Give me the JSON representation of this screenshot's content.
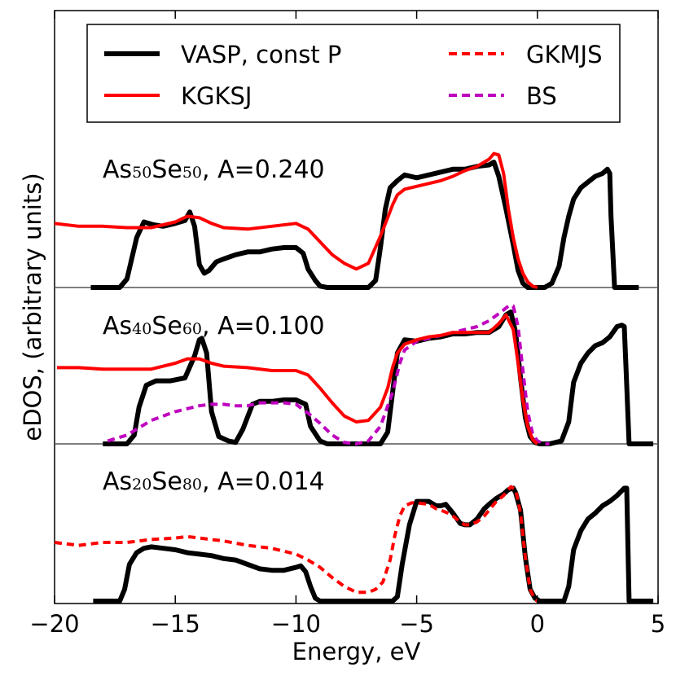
{
  "chart_data": {
    "type": "line",
    "xlabel": "Energy, eV",
    "ylabel": "eDOS, (arbitrary units)",
    "xlim": [
      -20,
      5
    ],
    "x_ticks": [
      -20,
      -15,
      -10,
      -5,
      0,
      5
    ],
    "x_tick_labels": [
      "−20",
      "−15",
      "−10",
      "−5",
      "0",
      "5"
    ],
    "y_tick_labels": "none",
    "legend": {
      "placement": "top",
      "entries": [
        {
          "label": "VASP, const P",
          "color": "#000000",
          "style": "solid"
        },
        {
          "label": "KGKSJ",
          "color": "#ff0000",
          "style": "solid"
        },
        {
          "label": "GKMJS",
          "color": "#ff0000",
          "style": "dashed"
        },
        {
          "label": "BS",
          "color": "#bf00bf",
          "style": "dashed"
        }
      ]
    },
    "panels": [
      {
        "id": "As50Se50",
        "label": {
          "el1": "As",
          "n1": "50",
          "el2": "Se",
          "n2": "50",
          "suffix": ", A=0.240"
        },
        "ylim": [
          0,
          1
        ],
        "series": [
          {
            "name": "VASP, const P",
            "x": [
              -18.5,
              -17.3,
              -17.0,
              -16.6,
              -16.3,
              -15.9,
              -15.5,
              -15.0,
              -14.6,
              -14.4,
              -14.2,
              -14.0,
              -13.8,
              -13.6,
              -13.3,
              -13.0,
              -12.5,
              -12.0,
              -11.5,
              -11.0,
              -10.5,
              -10.0,
              -9.7,
              -9.5,
              -9.2,
              -9.0,
              -8.7,
              -8.3,
              -7.5,
              -7.0,
              -6.7,
              -6.5,
              -6.3,
              -6.1,
              -5.8,
              -5.5,
              -5.0,
              -4.5,
              -4.0,
              -3.5,
              -3.0,
              -2.5,
              -2.0,
              -1.8,
              -1.6,
              -1.3,
              -1.0,
              -0.8,
              -0.6,
              -0.4,
              -0.2,
              0.0,
              0.3,
              0.6,
              0.9,
              1.1,
              1.3,
              1.5,
              1.8,
              2.1,
              2.4,
              2.7,
              2.9,
              3.0,
              3.05,
              3.2,
              4.2
            ],
            "y": [
              0,
              0,
              0.06,
              0.35,
              0.46,
              0.44,
              0.43,
              0.45,
              0.47,
              0.53,
              0.43,
              0.16,
              0.1,
              0.12,
              0.18,
              0.2,
              0.23,
              0.25,
              0.25,
              0.27,
              0.28,
              0.28,
              0.24,
              0.13,
              0.05,
              0.01,
              0,
              0,
              0,
              0,
              0.05,
              0.28,
              0.55,
              0.7,
              0.75,
              0.79,
              0.77,
              0.79,
              0.81,
              0.83,
              0.83,
              0.85,
              0.86,
              0.88,
              0.78,
              0.55,
              0.3,
              0.12,
              0.03,
              0,
              0,
              0,
              0,
              0.03,
              0.15,
              0.35,
              0.5,
              0.62,
              0.7,
              0.74,
              0.78,
              0.8,
              0.83,
              0.8,
              0.5,
              0,
              0
            ]
          },
          {
            "name": "KGKSJ",
            "x": [
              -20.0,
              -19.0,
              -18.0,
              -17.0,
              -16.0,
              -15.0,
              -14.5,
              -14.0,
              -13.5,
              -13.0,
              -12.0,
              -11.0,
              -10.0,
              -9.5,
              -9.0,
              -8.5,
              -8.0,
              -7.5,
              -7.0,
              -6.5,
              -6.2,
              -6.0,
              -5.8,
              -5.5,
              -5.0,
              -4.5,
              -4.0,
              -3.5,
              -3.0,
              -2.5,
              -2.0,
              -1.8,
              -1.6,
              -1.4,
              -1.2,
              -1.0,
              -0.8,
              -0.6,
              -0.4,
              -0.2,
              0.0
            ],
            "y": [
              0.45,
              0.43,
              0.43,
              0.42,
              0.42,
              0.46,
              0.5,
              0.49,
              0.45,
              0.42,
              0.41,
              0.43,
              0.45,
              0.41,
              0.32,
              0.23,
              0.17,
              0.13,
              0.17,
              0.36,
              0.49,
              0.58,
              0.65,
              0.69,
              0.71,
              0.73,
              0.75,
              0.78,
              0.82,
              0.85,
              0.9,
              0.94,
              0.93,
              0.8,
              0.55,
              0.35,
              0.2,
              0.1,
              0.04,
              0.01,
              0
            ]
          }
        ]
      },
      {
        "id": "As40Se60",
        "label": {
          "el1": "As",
          "n1": "40",
          "el2": "Se",
          "n2": "60",
          "suffix": ", A=0.100"
        },
        "ylim": [
          0,
          1
        ],
        "series": [
          {
            "name": "VASP, const P",
            "x": [
              -18.0,
              -17.0,
              -16.7,
              -16.5,
              -16.2,
              -15.8,
              -15.2,
              -14.6,
              -14.2,
              -14.0,
              -13.9,
              -13.7,
              -13.5,
              -13.2,
              -12.8,
              -12.5,
              -12.2,
              -11.8,
              -11.5,
              -11.0,
              -10.5,
              -10.0,
              -9.6,
              -9.4,
              -9.0,
              -8.7,
              -8.3,
              -7.5,
              -7.0,
              -6.5,
              -6.2,
              -6.0,
              -5.8,
              -5.5,
              -5.0,
              -4.5,
              -4.0,
              -3.5,
              -3.0,
              -2.5,
              -2.0,
              -1.6,
              -1.3,
              -1.1,
              -0.9,
              -0.7,
              -0.5,
              -0.3,
              -0.1,
              0.1,
              0.5,
              1.0,
              1.3,
              1.5,
              1.8,
              2.1,
              2.4,
              2.7,
              3.0,
              3.3,
              3.5,
              3.6,
              3.7,
              3.8,
              4.8
            ],
            "y": [
              0,
              0,
              0.06,
              0.25,
              0.4,
              0.43,
              0.43,
              0.45,
              0.6,
              0.71,
              0.72,
              0.62,
              0.22,
              0.05,
              0.02,
              0.01,
              0.1,
              0.27,
              0.29,
              0.29,
              0.3,
              0.3,
              0.27,
              0.12,
              0.02,
              0,
              0,
              0,
              0,
              0,
              0.08,
              0.35,
              0.62,
              0.71,
              0.7,
              0.72,
              0.73,
              0.75,
              0.75,
              0.76,
              0.76,
              0.8,
              0.88,
              0.9,
              0.76,
              0.45,
              0.18,
              0.05,
              0.01,
              0,
              0,
              0.02,
              0.15,
              0.42,
              0.55,
              0.62,
              0.67,
              0.69,
              0.73,
              0.8,
              0.81,
              0.8,
              0.4,
              0,
              0
            ]
          },
          {
            "name": "KGKSJ",
            "x": [
              -19.9,
              -19.0,
              -18.0,
              -17.0,
              -16.0,
              -15.0,
              -14.5,
              -14.0,
              -13.5,
              -13.0,
              -12.0,
              -11.0,
              -10.0,
              -9.5,
              -9.0,
              -8.5,
              -8.0,
              -7.5,
              -7.0,
              -6.5,
              -6.2,
              -6.0,
              -5.8,
              -5.5,
              -5.0,
              -4.5,
              -4.0,
              -3.5,
              -3.0,
              -2.5,
              -2.0,
              -1.6,
              -1.3,
              -1.0,
              -0.8,
              -0.6,
              -0.4,
              -0.2,
              0.0
            ],
            "y": [
              0.52,
              0.52,
              0.51,
              0.51,
              0.51,
              0.55,
              0.58,
              0.58,
              0.55,
              0.53,
              0.52,
              0.5,
              0.5,
              0.47,
              0.38,
              0.28,
              0.19,
              0.15,
              0.16,
              0.25,
              0.38,
              0.52,
              0.62,
              0.68,
              0.71,
              0.73,
              0.74,
              0.76,
              0.76,
              0.76,
              0.76,
              0.82,
              0.88,
              0.78,
              0.55,
              0.3,
              0.12,
              0.03,
              0
            ]
          },
          {
            "name": "BS",
            "x": [
              -17.8,
              -17.0,
              -16.5,
              -16.0,
              -15.0,
              -14.0,
              -13.5,
              -13.0,
              -12.5,
              -12.0,
              -11.5,
              -11.0,
              -10.5,
              -10.0,
              -9.5,
              -9.0,
              -8.5,
              -8.0,
              -7.5,
              -7.0,
              -6.5,
              -6.0,
              -5.7,
              -5.5,
              -5.0,
              -4.5,
              -4.0,
              -3.5,
              -3.0,
              -2.5,
              -2.0,
              -1.5,
              -1.2,
              -1.0,
              -0.8,
              -0.6,
              -0.4,
              -0.2,
              0.0,
              0.3,
              0.5
            ],
            "y": [
              0.02,
              0.06,
              0.11,
              0.16,
              0.22,
              0.26,
              0.27,
              0.27,
              0.26,
              0.26,
              0.28,
              0.28,
              0.28,
              0.27,
              0.21,
              0.14,
              0.06,
              0.01,
              0,
              0.02,
              0.12,
              0.35,
              0.55,
              0.64,
              0.7,
              0.72,
              0.74,
              0.76,
              0.78,
              0.8,
              0.84,
              0.9,
              0.94,
              0.94,
              0.8,
              0.5,
              0.22,
              0.07,
              0.02,
              0,
              0
            ]
          }
        ]
      },
      {
        "id": "As20Se80",
        "label": {
          "el1": "As",
          "n1": "20",
          "el2": "Se",
          "n2": "80",
          "suffix": ", A=0.014"
        },
        "ylim": [
          0,
          1
        ],
        "series": [
          {
            "name": "VASP, const P",
            "x": [
              -18.4,
              -17.3,
              -17.1,
              -16.9,
              -16.6,
              -16.3,
              -16.0,
              -15.5,
              -15.0,
              -14.5,
              -14.0,
              -13.5,
              -13.0,
              -12.5,
              -12.0,
              -11.5,
              -11.0,
              -10.5,
              -10.0,
              -9.8,
              -9.6,
              -9.4,
              -9.2,
              -9.0,
              -8.7,
              -8.4,
              -7.5,
              -6.7,
              -6.3,
              -6.0,
              -5.8,
              -5.6,
              -5.3,
              -5.0,
              -4.5,
              -4.2,
              -4.0,
              -3.8,
              -3.5,
              -3.2,
              -3.0,
              -2.8,
              -2.5,
              -2.2,
              -2.0,
              -1.7,
              -1.4,
              -1.2,
              -1.0,
              -0.9,
              -0.7,
              -0.5,
              -0.3,
              -0.1,
              0.1,
              0.6,
              1.1,
              1.3,
              1.5,
              1.8,
              2.1,
              2.4,
              2.7,
              3.0,
              3.3,
              3.6,
              3.7,
              3.8,
              4.8
            ],
            "y": [
              0,
              0,
              0.08,
              0.25,
              0.33,
              0.36,
              0.37,
              0.36,
              0.35,
              0.33,
              0.32,
              0.31,
              0.29,
              0.28,
              0.25,
              0.22,
              0.21,
              0.21,
              0.23,
              0.24,
              0.2,
              0.1,
              0.02,
              0,
              0,
              0,
              0,
              0,
              0,
              0,
              0.03,
              0.25,
              0.52,
              0.68,
              0.68,
              0.65,
              0.65,
              0.66,
              0.6,
              0.53,
              0.52,
              0.52,
              0.56,
              0.63,
              0.66,
              0.7,
              0.73,
              0.76,
              0.77,
              0.74,
              0.62,
              0.3,
              0.08,
              0.02,
              0,
              0,
              0,
              0.1,
              0.35,
              0.48,
              0.56,
              0.6,
              0.65,
              0.68,
              0.72,
              0.77,
              0.77,
              0,
              0
            ]
          },
          {
            "name": "GKMJS",
            "x": [
              -20.0,
              -19.0,
              -18.0,
              -17.0,
              -16.0,
              -15.0,
              -14.5,
              -14.0,
              -13.5,
              -13.0,
              -12.0,
              -11.0,
              -10.0,
              -9.5,
              -9.0,
              -8.5,
              -8.0,
              -7.5,
              -7.0,
              -6.7,
              -6.4,
              -6.1,
              -5.9,
              -5.7,
              -5.5,
              -5.2,
              -5.0,
              -4.5,
              -4.2,
              -4.0,
              -3.7,
              -3.5,
              -3.2,
              -3.0,
              -2.8,
              -2.5,
              -2.2,
              -2.0,
              -1.7,
              -1.4,
              -1.1,
              -0.9,
              -0.7,
              -0.5,
              -0.3,
              -0.1,
              0.0
            ],
            "y": [
              0.4,
              0.38,
              0.4,
              0.4,
              0.42,
              0.43,
              0.44,
              0.43,
              0.42,
              0.41,
              0.38,
              0.36,
              0.32,
              0.28,
              0.23,
              0.16,
              0.1,
              0.06,
              0.06,
              0.08,
              0.13,
              0.28,
              0.45,
              0.58,
              0.65,
              0.67,
              0.67,
              0.66,
              0.63,
              0.62,
              0.6,
              0.58,
              0.54,
              0.52,
              0.52,
              0.54,
              0.58,
              0.62,
              0.68,
              0.72,
              0.78,
              0.76,
              0.6,
              0.3,
              0.08,
              0.01,
              0
            ]
          }
        ]
      }
    ]
  }
}
